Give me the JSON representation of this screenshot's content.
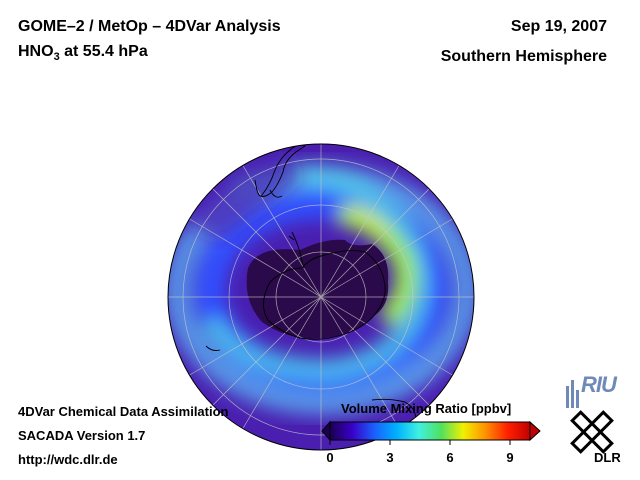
{
  "header": {
    "title": "GOME–2 / MetOp – 4DVar Analysis",
    "species_main": "HNO",
    "species_sub": "3",
    "species_rest": " at 55.4 hPa",
    "date": "Sep 19, 2007",
    "region": "Southern Hemisphere"
  },
  "footer": {
    "line1": "4DVar Chemical Data Assimilation",
    "line2": "SACADA Version 1.7",
    "line3": "http://wdc.dlr.de"
  },
  "colorbar": {
    "title": "Volume Mixing Ratio [ppbv]",
    "min": 0,
    "max": 10,
    "ticks": [
      "0",
      "3",
      "6",
      "9"
    ],
    "tick_values": [
      0,
      3,
      6,
      9
    ],
    "colors": [
      "#1a0050",
      "#3a00c8",
      "#1a60ff",
      "#00b0ff",
      "#40f0e0",
      "#50e060",
      "#f0f000",
      "#ff9000",
      "#ff2000",
      "#c00000"
    ]
  },
  "logos": {
    "riu": "RIU",
    "dlr": "DLR"
  },
  "map": {
    "projection": "polar-stereographic-south",
    "field_colors": {
      "background": "#4a1fb0",
      "low": "#2a0a4a",
      "mid": "#3050ff",
      "high": "#50d0e8",
      "peak": "#a0f040"
    }
  }
}
